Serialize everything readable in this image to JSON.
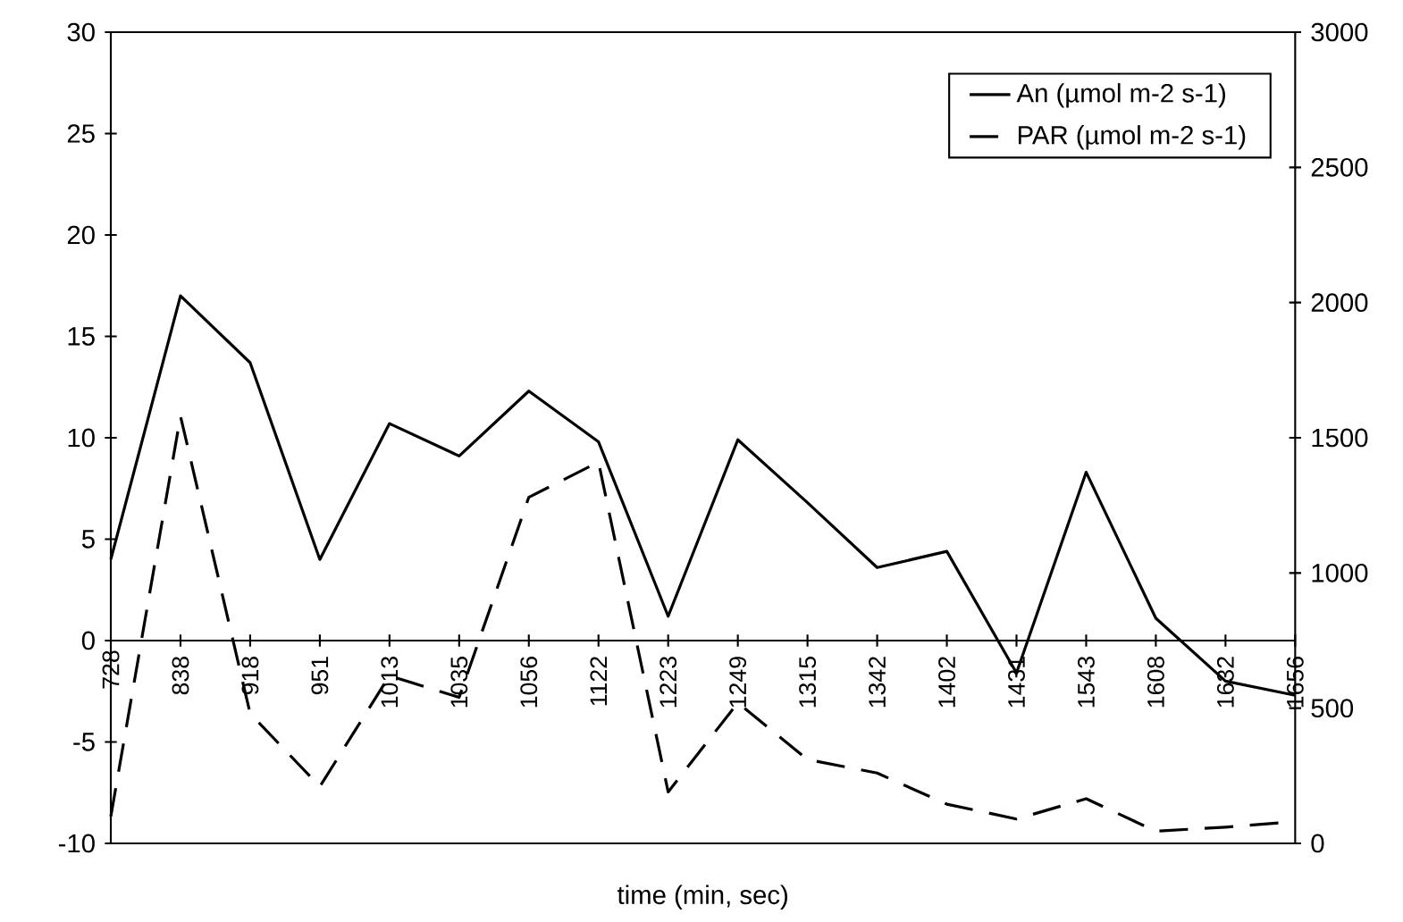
{
  "chart_data": {
    "type": "line",
    "xlabel": "time (min, sec)",
    "categories": [
      "728",
      "838",
      "918",
      "951",
      "1013",
      "1035",
      "1056",
      "1122",
      "1223",
      "1249",
      "1315",
      "1342",
      "1402",
      "1431",
      "1543",
      "1608",
      "1632",
      "1656"
    ],
    "series": [
      {
        "name": "An (µmol m-2 s-1)",
        "color": "#000000",
        "line_style": "solid",
        "values": [
          4.0,
          17.0,
          13.7,
          4.0,
          10.7,
          9.1,
          12.3,
          9.8,
          1.2,
          9.9,
          6.8,
          3.6,
          4.4,
          -1.6,
          8.3,
          1.1,
          -2.0,
          -2.7
        ]
      },
      {
        "name": "PAR (µmol m-2 s-1)",
        "color": "#000000",
        "line_style": "dashed",
        "axis": "y2",
        "values": [
          100,
          1580,
          480,
          210,
          620,
          540,
          1280,
          1410,
          190,
          520,
          310,
          260,
          145,
          90,
          165,
          45,
          60,
          80
        ]
      }
    ],
    "ylim": [
      -10,
      30
    ],
    "yticks": [
      -10,
      -5,
      0,
      5,
      10,
      15,
      20,
      25,
      30
    ],
    "y2lim": [
      0,
      3000
    ],
    "y2ticks": [
      0,
      500,
      1000,
      1500,
      2000,
      2500,
      3000
    ],
    "legend": "top right"
  }
}
